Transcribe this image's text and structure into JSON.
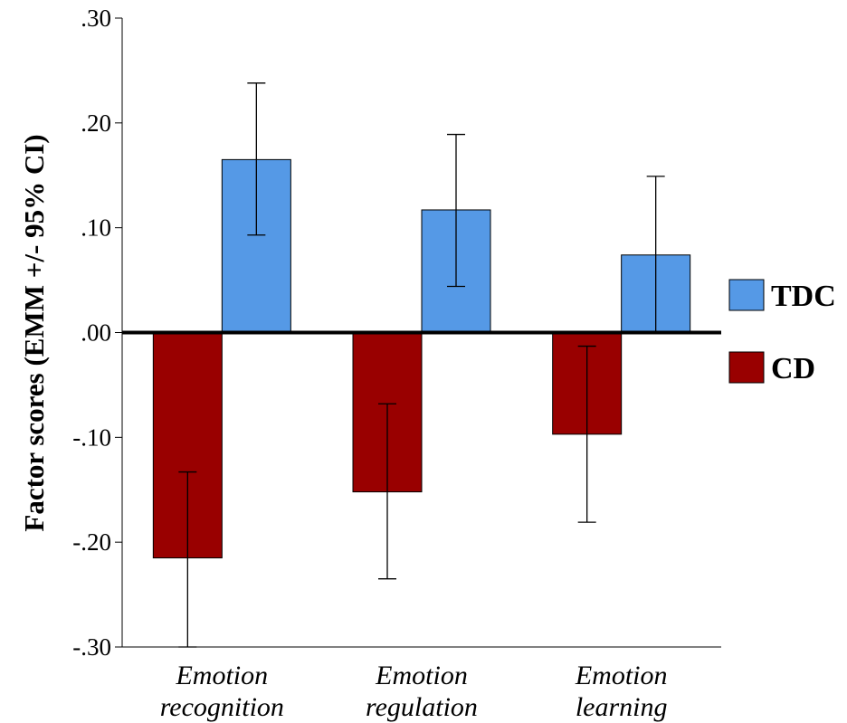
{
  "chart_data": {
    "type": "bar",
    "ylabel": "Factor scores (EMM +/- 95% CI)",
    "xlabel": "",
    "ylim": [
      -0.3,
      0.3
    ],
    "yticks": [
      {
        "value": 0.3,
        "label": ".30"
      },
      {
        "value": 0.2,
        "label": ".20"
      },
      {
        "value": 0.1,
        "label": ".10"
      },
      {
        "value": 0.0,
        "label": ".00"
      },
      {
        "value": -0.1,
        "label": "-.10"
      },
      {
        "value": -0.2,
        "label": "-.20"
      },
      {
        "value": -0.3,
        "label": "-.30"
      }
    ],
    "categories": [
      [
        "Emotion",
        "recognition"
      ],
      [
        "Emotion",
        "regulation"
      ],
      [
        "Emotion",
        "learning"
      ]
    ],
    "series": [
      {
        "name": "CD",
        "color": "#990000",
        "values": [
          -0.215,
          -0.152,
          -0.097
        ],
        "ci_low": [
          -0.3,
          -0.235,
          -0.181
        ],
        "ci_high": [
          -0.133,
          -0.068,
          -0.013
        ]
      },
      {
        "name": "TDC",
        "color": "#5599e6",
        "values": [
          0.165,
          0.117,
          0.074
        ],
        "ci_low": [
          0.093,
          0.044,
          0.0
        ],
        "ci_high": [
          0.238,
          0.189,
          0.149
        ]
      }
    ],
    "legend": {
      "position": "right",
      "entries": [
        {
          "label": "TDC",
          "color": "#5599e6"
        },
        {
          "label": "CD",
          "color": "#990000"
        }
      ]
    },
    "grid": false
  }
}
